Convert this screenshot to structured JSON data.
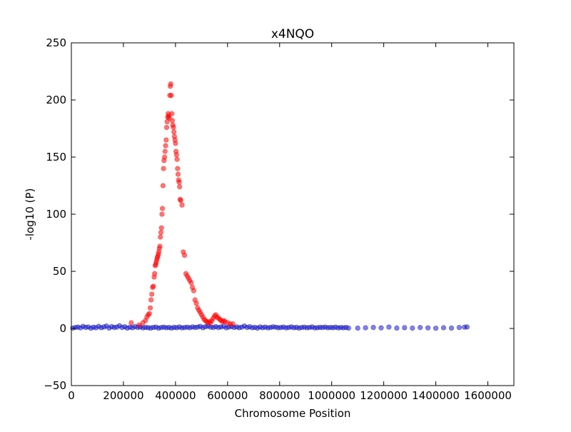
{
  "chart_data": {
    "type": "scatter",
    "title": "x4NQO",
    "xlabel": "Chromosome Position",
    "ylabel": "-log10 (P)",
    "xlim": [
      0,
      1700000
    ],
    "ylim": [
      -50,
      250
    ],
    "xticks": [
      0,
      200000,
      400000,
      600000,
      800000,
      1000000,
      1200000,
      1400000,
      1600000
    ],
    "yticks": [
      -50,
      0,
      50,
      100,
      150,
      200,
      250
    ],
    "grid": false,
    "legend": "none",
    "series": [
      {
        "color": "#0000ff",
        "edge_color": "#000000",
        "alpha": 0.5,
        "note_on_data": "dense band of points near zero across the chromosome",
        "x": [
          5000,
          15000,
          25000,
          35000,
          45000,
          55000,
          65000,
          75000,
          85000,
          95000,
          105000,
          115000,
          125000,
          135000,
          145000,
          155000,
          165000,
          175000,
          185000,
          195000,
          205000,
          215000,
          225000,
          235000,
          245000,
          255000,
          265000,
          275000,
          285000,
          295000,
          305000,
          315000,
          325000,
          335000,
          345000,
          355000,
          365000,
          375000,
          385000,
          395000,
          405000,
          415000,
          425000,
          435000,
          445000,
          455000,
          465000,
          475000,
          485000,
          495000,
          505000,
          515000,
          525000,
          535000,
          545000,
          555000,
          565000,
          575000,
          585000,
          595000,
          605000,
          615000,
          625000,
          635000,
          645000,
          655000,
          665000,
          675000,
          685000,
          695000,
          705000,
          715000,
          725000,
          735000,
          745000,
          755000,
          765000,
          775000,
          785000,
          795000,
          805000,
          815000,
          825000,
          835000,
          845000,
          855000,
          865000,
          875000,
          885000,
          895000,
          905000,
          915000,
          925000,
          935000,
          945000,
          955000,
          965000,
          975000,
          985000,
          995000,
          1005000,
          1015000,
          1025000,
          1035000,
          1045000,
          1055000,
          1065000,
          1100000,
          1130000,
          1160000,
          1190000,
          1220000,
          1250000,
          1280000,
          1310000,
          1340000,
          1370000,
          1400000,
          1430000,
          1460000,
          1490000,
          1510000,
          1520000
        ],
        "y": [
          0.3,
          0.8,
          1.2,
          0.5,
          1.8,
          0.9,
          1.4,
          0.2,
          1.1,
          0.6,
          1.9,
          0.7,
          1.3,
          2.1,
          0.4,
          1.6,
          0.9,
          1.2,
          2.4,
          0.8,
          1.5,
          0.3,
          1.1,
          0.6,
          1.7,
          0.9,
          1.3,
          0.5,
          1.0,
          0.7,
          0.4,
          0.9,
          1.2,
          0.3,
          0.8,
          1.1,
          0.6,
          0.9,
          0.4,
          1.0,
          0.7,
          1.3,
          0.5,
          0.8,
          1.1,
          0.6,
          1.4,
          0.9,
          1.2,
          1.8,
          0.7,
          1.5,
          2.0,
          1.1,
          0.9,
          1.6,
          0.8,
          1.3,
          1.9,
          0.6,
          1.2,
          1.7,
          0.9,
          1.4,
          0.7,
          1.1,
          2.2,
          0.8,
          1.5,
          0.6,
          1.0,
          0.4,
          1.3,
          0.7,
          1.2,
          0.5,
          0.9,
          1.4,
          1.1,
          0.6,
          0.8,
          1.2,
          0.5,
          0.9,
          1.3,
          0.7,
          1.0,
          0.4,
          0.8,
          1.1,
          0.6,
          0.9,
          1.3,
          0.5,
          0.7,
          1.0,
          0.8,
          1.2,
          0.6,
          0.9,
          0.7,
          1.1,
          0.5,
          0.8,
          0.6,
          0.9,
          0.4,
          0.3,
          0.6,
          0.9,
          0.5,
          1.2,
          0.4,
          0.7,
          0.3,
          0.8,
          0.5,
          0.2,
          0.6,
          0.4,
          0.8,
          1.1,
          1.3
        ]
      },
      {
        "color": "#ff0000",
        "edge_color": "#ff0000",
        "alpha": 0.55,
        "x": [
          230000,
          260000,
          275000,
          285000,
          290000,
          295000,
          300000,
          303000,
          306000,
          309000,
          312000,
          315000,
          318000,
          320000,
          322000,
          324000,
          326000,
          328000,
          330000,
          332000,
          334000,
          336000,
          338000,
          340000,
          342000,
          344000,
          346000,
          348000,
          350000,
          352000,
          354000,
          356000,
          358000,
          360000,
          362000,
          364000,
          366000,
          368000,
          370000,
          372000,
          374000,
          376000,
          378000,
          380000,
          382000,
          384000,
          386000,
          388000,
          390000,
          392000,
          394000,
          396000,
          398000,
          400000,
          402000,
          404000,
          406000,
          408000,
          410000,
          412000,
          414000,
          416000,
          418000,
          420000,
          425000,
          430000,
          435000,
          440000,
          445000,
          450000,
          455000,
          460000,
          465000,
          470000,
          475000,
          480000,
          485000,
          490000,
          495000,
          500000,
          505000,
          510000,
          515000,
          520000,
          525000,
          530000,
          535000,
          540000,
          545000,
          550000,
          555000,
          560000,
          565000,
          570000,
          575000,
          580000,
          585000,
          590000,
          600000,
          610000,
          620000
        ],
        "y": [
          5,
          3,
          5,
          7,
          10,
          12,
          13,
          18,
          25,
          30,
          36,
          37,
          45,
          48,
          55,
          56,
          58,
          60,
          62,
          63,
          65,
          67,
          70,
          72,
          80,
          84,
          88,
          100,
          105,
          125,
          140,
          147,
          150,
          155,
          160,
          165,
          176,
          181,
          185,
          188,
          186,
          184,
          204,
          212,
          214,
          204,
          188,
          182,
          178,
          176,
          172,
          168,
          165,
          162,
          155,
          152,
          148,
          140,
          135,
          130,
          128,
          124,
          113,
          112,
          108,
          67,
          64,
          48,
          46,
          44,
          42,
          40,
          36,
          33,
          25,
          22,
          18,
          16,
          14,
          12,
          10,
          8,
          7,
          6,
          5,
          6,
          5,
          7,
          9,
          11,
          12,
          10,
          9,
          8,
          7,
          6,
          7,
          6,
          5,
          4,
          4
        ]
      }
    ]
  }
}
